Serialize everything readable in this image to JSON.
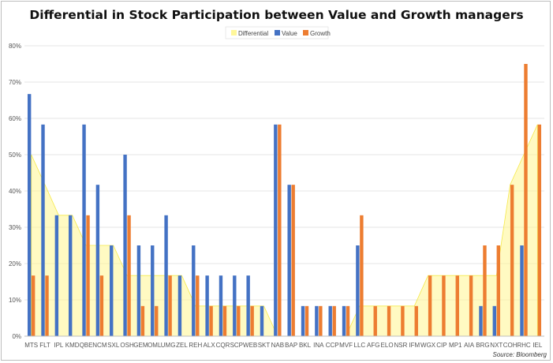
{
  "chart_data": {
    "type": "bar",
    "title": "Differential in Stock Participation between Value and Growth managers",
    "xlabel": "",
    "ylabel": "",
    "ylim": [
      0,
      80
    ],
    "y_ticks": [
      "0%",
      "10%",
      "20%",
      "30%",
      "40%",
      "50%",
      "60%",
      "70%",
      "80%"
    ],
    "grid": true,
    "legend_position": "top-center",
    "categories": [
      "MTS",
      "FLT",
      "IPL",
      "KMD",
      "QBE",
      "NCM",
      "SXL",
      "OSH",
      "GEM",
      "OML",
      "UMG",
      "ZEL",
      "REH",
      "ALX",
      "CQR",
      "SCP",
      "WEB",
      "SKT",
      "NAB",
      "BAP",
      "BKL",
      "INA",
      "CCP",
      "MVF",
      "LLC",
      "AFG",
      "ELO",
      "NSR",
      "IFM",
      "WGX",
      "CIP",
      "MP1",
      "AIA",
      "BRG",
      "NXT",
      "COH",
      "RHC",
      "IEL"
    ],
    "series": [
      {
        "name": "Differential",
        "kind": "area",
        "color": "#FFF79A",
        "values": [
          50,
          41.7,
          33.3,
          33.3,
          25,
          25,
          25,
          16.7,
          16.7,
          16.7,
          16.7,
          16.7,
          8.3,
          8.3,
          8.3,
          8.3,
          8.3,
          8.3,
          0,
          0,
          0,
          0,
          0,
          0,
          8.3,
          8.3,
          8.3,
          8.3,
          8.3,
          16.7,
          16.7,
          16.7,
          16.7,
          16.7,
          16.7,
          41.7,
          50,
          58.3
        ]
      },
      {
        "name": "Value",
        "kind": "bar",
        "color": "#4472C4",
        "values": [
          66.7,
          58.3,
          33.3,
          33.3,
          58.3,
          41.7,
          25,
          50,
          25,
          25,
          33.3,
          16.7,
          25,
          16.7,
          16.7,
          16.7,
          16.7,
          8.3,
          58.3,
          41.7,
          8.3,
          8.3,
          8.3,
          8.3,
          25,
          0,
          0,
          0,
          0,
          0,
          0,
          0,
          0,
          8.3,
          8.3,
          0,
          25,
          0
        ]
      },
      {
        "name": "Growth",
        "kind": "bar",
        "color": "#ED7D31",
        "values": [
          16.7,
          16.7,
          0,
          0,
          33.3,
          16.7,
          0,
          33.3,
          8.3,
          8.3,
          16.7,
          0,
          16.7,
          8.3,
          8.3,
          8.3,
          8.3,
          0,
          58.3,
          41.7,
          8.3,
          8.3,
          8.3,
          8.3,
          33.3,
          8.3,
          8.3,
          8.3,
          8.3,
          16.7,
          16.7,
          16.7,
          16.7,
          25,
          25,
          41.7,
          75,
          58.3
        ]
      }
    ]
  },
  "source": "Source: Bloomberg"
}
